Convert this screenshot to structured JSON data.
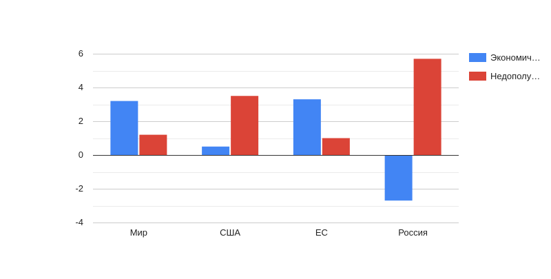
{
  "chart_data": {
    "type": "bar",
    "title": "",
    "xlabel": "",
    "ylabel": "",
    "categories": [
      "Мир",
      "США",
      "ЕС",
      "Россия"
    ],
    "series": [
      {
        "name": "Экономич…",
        "color": "#4285f4",
        "values": [
          3.2,
          0.5,
          3.3,
          -2.7
        ]
      },
      {
        "name": "Недополу…",
        "color": "#db4437",
        "values": [
          1.2,
          3.5,
          1.0,
          5.7
        ]
      }
    ],
    "ylim": [
      -4,
      6
    ],
    "yticks": [
      "6",
      "4",
      "2",
      "0",
      "-2",
      "-4"
    ],
    "grid": true,
    "legend_position": "right"
  }
}
